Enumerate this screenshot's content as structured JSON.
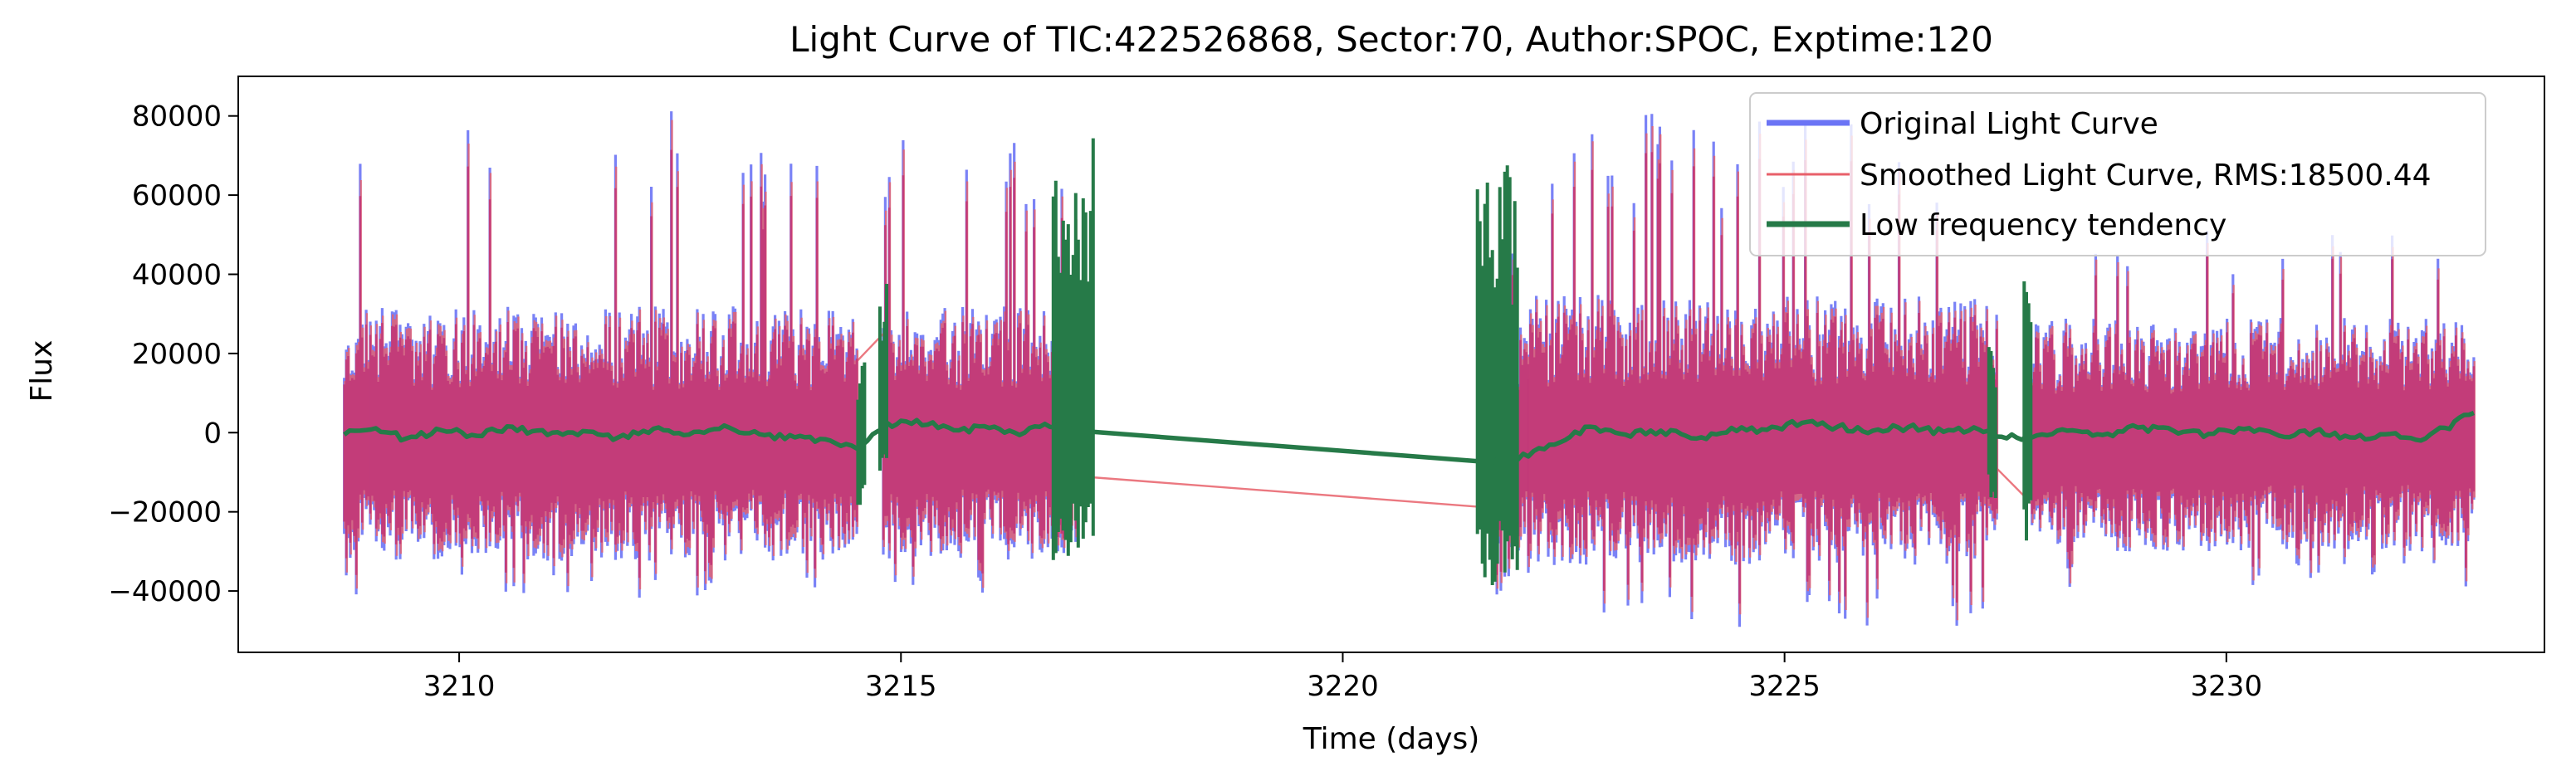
{
  "chart_data": {
    "type": "line",
    "title": "Light Curve of TIC:422526868, Sector:70, Author:SPOC, Exptime:120",
    "xlabel": "Time (days)",
    "ylabel": "Flux",
    "xlim": [
      3207.5,
      3233.6
    ],
    "ylim": [
      -55500,
      90000
    ],
    "xticks": [
      3210,
      3215,
      3220,
      3225,
      3230
    ],
    "yticks": [
      -40000,
      -20000,
      0,
      20000,
      40000,
      60000,
      80000
    ],
    "ytick_labels": [
      "−40000",
      "−20000",
      "0",
      "20000",
      "40000",
      "60000",
      "80000"
    ],
    "grid": false,
    "legend": {
      "placement": "top-right"
    },
    "colors": {
      "original": "#6b74f5",
      "smoothed": "#e8606a",
      "overlap": "#c23a78",
      "tendency": "#267a48"
    },
    "segments": [
      {
        "x_start": 3208.7,
        "x_end": 3214.5,
        "flux_min": -42000,
        "flux_max": 83000,
        "typical_low": -27000,
        "typical_high": 22000
      },
      {
        "x_start": 3214.8,
        "x_end": 3217.0,
        "flux_min": -42000,
        "flux_max": 82000,
        "typical_low": -27000,
        "typical_high": 22000
      },
      {
        "x_start": 3221.7,
        "x_end": 3222.1,
        "flux_min": -41000,
        "flux_max": 50000,
        "typical_low": -25000,
        "typical_high": 20000
      },
      {
        "x_start": 3222.1,
        "x_end": 3227.4,
        "flux_min": -50000,
        "flux_max": 81000,
        "typical_low": -28000,
        "typical_high": 24000
      },
      {
        "x_start": 3227.8,
        "x_end": 3232.8,
        "flux_min": -39000,
        "flux_max": 52000,
        "typical_low": -25000,
        "typical_high": 20000
      }
    ],
    "series": [
      {
        "name": "Original Light Curve",
        "style": "dense-oscillation",
        "note_range": "flux approx -50000 to 83000"
      },
      {
        "name": "Smoothed Light Curve, RMS:18500.44",
        "style": "dense-oscillation",
        "gap_links": [
          {
            "x": [
              3214.5,
              3214.8
            ],
            "y": [
              18000,
              25000
            ]
          },
          {
            "x": [
              3217.0,
              3221.7
            ],
            "y": [
              -11000,
              -19000
            ]
          },
          {
            "x": [
              3227.4,
              3227.8
            ],
            "y": [
              -9000,
              -18000
            ]
          }
        ]
      },
      {
        "name": "Low frequency tendency",
        "x": [
          3208.7,
          3209.0,
          3209.4,
          3209.8,
          3210.2,
          3210.6,
          3211.0,
          3211.4,
          3211.8,
          3212.2,
          3212.6,
          3213.0,
          3213.4,
          3213.8,
          3214.2,
          3214.5,
          3214.8,
          3215.0,
          3215.3,
          3215.6,
          3216.0,
          3216.4,
          3216.8,
          3217.0,
          3221.7,
          3222.1,
          3222.4,
          3222.8,
          3223.2,
          3223.6,
          3224.0,
          3224.4,
          3224.8,
          3225.2,
          3225.6,
          3226.0,
          3226.4,
          3226.8,
          3227.2,
          3227.4,
          3227.8,
          3228.2,
          3228.6,
          3229.0,
          3229.4,
          3229.8,
          3230.2,
          3230.6,
          3231.0,
          3231.4,
          3231.8,
          3232.2,
          3232.8
        ],
        "y": [
          -500,
          800,
          -1500,
          600,
          -800,
          1500,
          -600,
          400,
          -1200,
          1000,
          -500,
          1800,
          -400,
          -1200,
          -2000,
          -4000,
          1000,
          3000,
          2000,
          600,
          1200,
          0,
          2500,
          500,
          -7500,
          -6000,
          -3000,
          1500,
          -500,
          500,
          -1500,
          1200,
          700,
          2500,
          1500,
          500,
          1400,
          200,
          800,
          -1000,
          -1200,
          500,
          -600,
          1300,
          500,
          -300,
          900,
          -800,
          400,
          -1200,
          -400,
          -2000,
          5000
        ],
        "transitions": [
          {
            "x": 3214.55,
            "y_min": -19000,
            "y_max": 18000
          },
          {
            "x": 3214.8,
            "y_min": -10000,
            "y_max": 38000
          },
          {
            "x": 3216.95,
            "y_min": -34000,
            "y_max": 77000
          },
          {
            "x": 3221.75,
            "y_min": -41000,
            "y_max": 68000
          },
          {
            "x": 3227.35,
            "y_min": -17000,
            "y_max": 22000
          },
          {
            "x": 3227.75,
            "y_min": -31000,
            "y_max": 40000
          }
        ]
      }
    ]
  }
}
